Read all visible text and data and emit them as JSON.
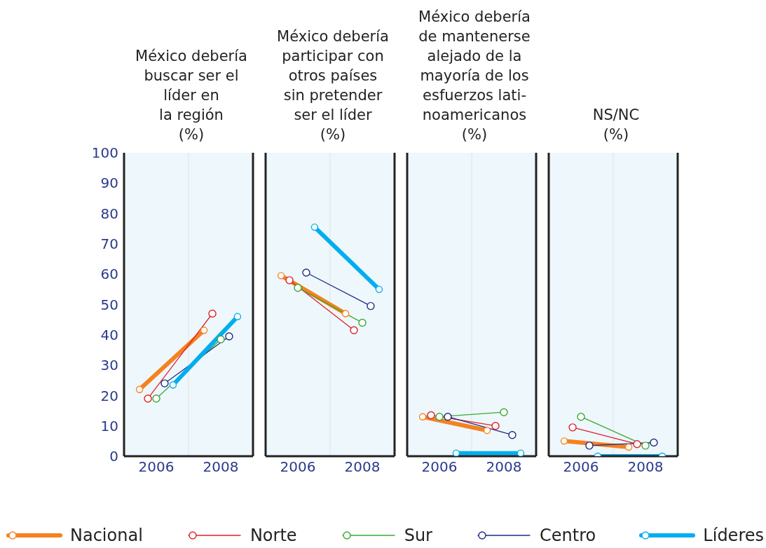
{
  "chart_data": [
    {
      "type": "line",
      "title": "México debería\nbuscar ser el\nlíder en\nla región\n(%)",
      "categories": [
        "2006",
        "2008"
      ],
      "ylim": [
        0,
        100
      ],
      "yticks": [
        0,
        10,
        20,
        30,
        40,
        50,
        60,
        70,
        80,
        90,
        100
      ],
      "grid": true,
      "marker": "circle",
      "legend": "bottom",
      "series": [
        {
          "name": "Nacional",
          "color": "#f58220",
          "values": [
            22,
            41.5
          ]
        },
        {
          "name": "Norte",
          "color": "#e0202a",
          "values": [
            19,
            47
          ]
        },
        {
          "name": "Sur",
          "color": "#3aaa35",
          "values": [
            19,
            38.5
          ]
        },
        {
          "name": "Centro",
          "color": "#1f2d86",
          "values": [
            24,
            39.5
          ]
        },
        {
          "name": "Líderes",
          "color": "#00aeef",
          "values": [
            23.5,
            46
          ]
        }
      ]
    },
    {
      "type": "line",
      "title": "México debería\nparticipar con\notros países\nsin pretender\nser el líder\n(%)",
      "categories": [
        "2006",
        "2008"
      ],
      "ylim": [
        0,
        100
      ],
      "yticks": [
        0,
        10,
        20,
        30,
        40,
        50,
        60,
        70,
        80,
        90,
        100
      ],
      "tick_labels": "x",
      "grid": true,
      "marker": "circle",
      "series": [
        {
          "color": "#f58220",
          "values": [
            59.5,
            47
          ]
        },
        {
          "color": "#e0202a",
          "values": [
            58,
            41.5
          ]
        },
        {
          "color": "#3aaa35",
          "values": [
            55.5,
            44
          ]
        },
        {
          "color": "#1f2d86",
          "values": [
            60.5,
            49.5
          ]
        },
        {
          "color": "#00aeef",
          "values": [
            75.5,
            55
          ]
        }
      ]
    },
    {
      "type": "line",
      "title": "México debería\nde mantenerse\nalejado de la\nmayoría de los\nesfuerzos lati-\nnoamericanos\n(%)",
      "categories": [
        "2006",
        "2008"
      ],
      "ylim": [
        0,
        100
      ],
      "yticks": [
        0,
        10,
        20,
        30,
        40,
        50,
        60,
        70,
        80,
        90,
        100
      ],
      "tick_labels": "x",
      "grid": true,
      "marker": "circle",
      "series": [
        {
          "color": "#f58220",
          "values": [
            13,
            8.5
          ]
        },
        {
          "color": "#e0202a",
          "values": [
            13.5,
            10
          ]
        },
        {
          "color": "#3aaa35",
          "values": [
            13,
            14.5
          ]
        },
        {
          "color": "#1f2d86",
          "values": [
            13,
            7
          ]
        },
        {
          "color": "#00aeef",
          "values": [
            1,
            1
          ]
        }
      ]
    },
    {
      "type": "line",
      "title": "NS/NC\n(%)",
      "categories": [
        "2006",
        "2008"
      ],
      "ylim": [
        0,
        100
      ],
      "yticks": [
        0,
        10,
        20,
        30,
        40,
        50,
        60,
        70,
        80,
        90,
        100
      ],
      "tick_labels": "x",
      "grid": true,
      "marker": "circle",
      "series": [
        {
          "color": "#f58220",
          "values": [
            5,
            3
          ]
        },
        {
          "color": "#e0202a",
          "values": [
            9.5,
            4
          ]
        },
        {
          "color": "#3aaa35",
          "values": [
            13,
            3.5
          ]
        },
        {
          "color": "#1f2d86",
          "values": [
            3.5,
            4.5
          ]
        },
        {
          "color": "#00aeef",
          "values": [
            0,
            0
          ]
        }
      ]
    }
  ]
}
